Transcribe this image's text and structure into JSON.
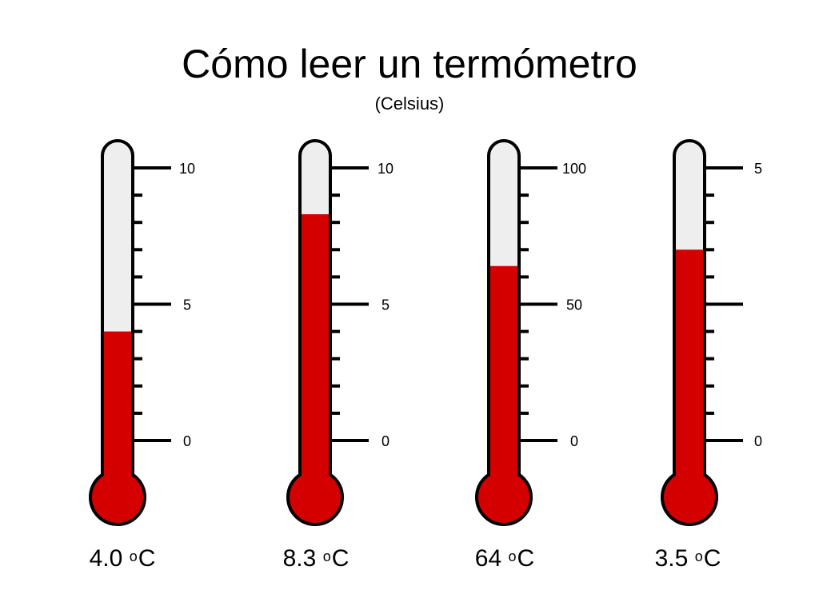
{
  "title": "Cómo leer un termómetro",
  "subtitle": "(Celsius)",
  "colors": {
    "mercury": "#d40000",
    "tube": "#eeeeee",
    "outline": "#000000"
  },
  "thermometers": [
    {
      "min": 0,
      "max": 10,
      "labels": [
        "10",
        "5",
        "0"
      ],
      "value": 4.0,
      "reading": "4.0",
      "sup": "o",
      "unit": "C",
      "ticks": 10
    },
    {
      "min": 0,
      "max": 10,
      "labels": [
        "10",
        "5",
        "0"
      ],
      "value": 8.3,
      "reading": "8.3",
      "sup": "o",
      "unit": "C",
      "ticks": 10
    },
    {
      "min": 0,
      "max": 100,
      "labels": [
        "100",
        "50",
        "0"
      ],
      "value": 64,
      "reading": "64",
      "sup": "o",
      "unit": "C",
      "ticks": 10
    },
    {
      "min": 0,
      "max": 5,
      "labels": [
        "5",
        "",
        "0"
      ],
      "value": 3.5,
      "reading": "3.5",
      "sup": "o",
      "unit": "C",
      "ticks": 10
    }
  ]
}
